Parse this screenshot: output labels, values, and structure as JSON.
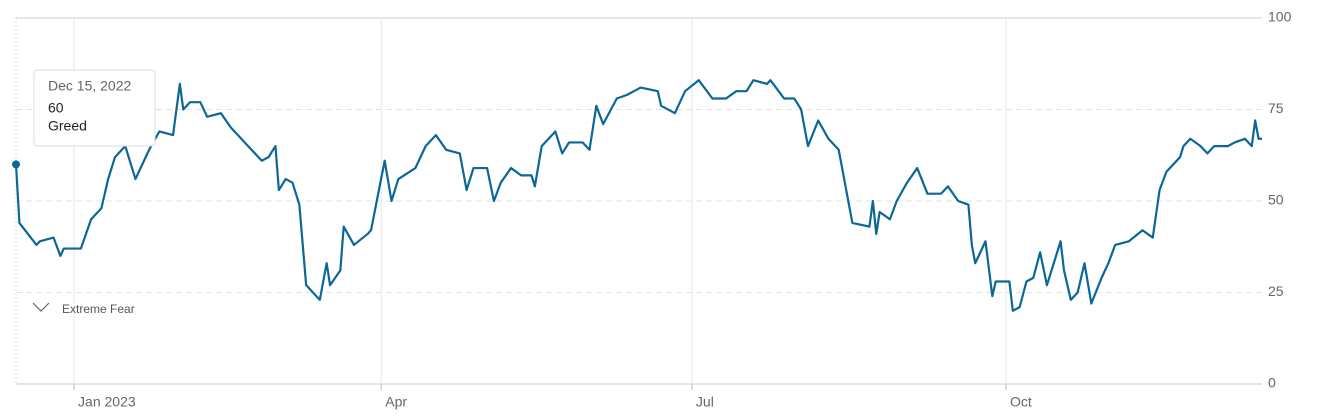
{
  "chart_data": {
    "type": "line",
    "color": "#0b6796",
    "x": [
      "2022-12-15",
      "2022-12-16",
      "2022-12-21",
      "2022-12-22",
      "2022-12-26",
      "2022-12-28",
      "2022-12-29",
      "2023-01-03",
      "2023-01-06",
      "2023-01-09",
      "2023-01-11",
      "2023-01-13",
      "2023-01-16",
      "2023-01-19",
      "2023-01-23",
      "2023-01-26",
      "2023-01-30",
      "2023-02-01",
      "2023-02-02",
      "2023-02-04",
      "2023-02-07",
      "2023-02-09",
      "2023-02-13",
      "2023-02-16",
      "2023-02-21",
      "2023-02-25",
      "2023-02-27",
      "2023-03-01",
      "2023-03-02",
      "2023-03-04",
      "2023-03-06",
      "2023-03-08",
      "2023-03-10",
      "2023-03-14",
      "2023-03-16",
      "2023-03-17",
      "2023-03-20",
      "2023-03-21",
      "2023-03-24",
      "2023-03-28",
      "2023-03-29",
      "2023-04-02",
      "2023-04-04",
      "2023-04-06",
      "2023-04-11",
      "2023-04-14",
      "2023-04-17",
      "2023-04-20",
      "2023-04-24",
      "2023-04-26",
      "2023-04-28",
      "2023-05-02",
      "2023-05-04",
      "2023-05-06",
      "2023-05-09",
      "2023-05-12",
      "2023-05-15",
      "2023-05-16",
      "2023-05-18",
      "2023-05-22",
      "2023-05-24",
      "2023-05-26",
      "2023-05-30",
      "2023-06-01",
      "2023-06-03",
      "2023-06-05",
      "2023-06-09",
      "2023-06-12",
      "2023-06-16",
      "2023-06-21",
      "2023-06-22",
      "2023-06-26",
      "2023-06-29",
      "2023-07-03",
      "2023-07-07",
      "2023-07-11",
      "2023-07-14",
      "2023-07-17",
      "2023-07-19",
      "2023-07-23",
      "2023-07-24",
      "2023-07-28",
      "2023-07-31",
      "2023-08-02",
      "2023-08-04",
      "2023-08-07",
      "2023-08-10",
      "2023-08-13",
      "2023-08-15",
      "2023-08-17",
      "2023-08-22",
      "2023-08-23",
      "2023-08-24",
      "2023-08-25",
      "2023-08-28",
      "2023-08-30",
      "2023-09-02",
      "2023-09-05",
      "2023-09-08",
      "2023-09-12",
      "2023-09-14",
      "2023-09-17",
      "2023-09-20",
      "2023-09-21",
      "2023-09-22",
      "2023-09-25",
      "2023-09-27",
      "2023-09-28",
      "2023-10-02",
      "2023-10-03",
      "2023-10-05",
      "2023-10-07",
      "2023-10-09",
      "2023-10-11",
      "2023-10-13",
      "2023-10-17",
      "2023-10-18",
      "2023-10-20",
      "2023-10-22",
      "2023-10-24",
      "2023-10-26",
      "2023-10-29",
      "2023-10-31",
      "2023-11-02",
      "2023-11-06",
      "2023-11-10",
      "2023-11-13",
      "2023-11-15",
      "2023-11-17",
      "2023-11-21",
      "2023-11-22",
      "2023-11-24",
      "2023-11-27",
      "2023-11-29",
      "2023-12-01",
      "2023-12-05",
      "2023-12-07",
      "2023-12-10",
      "2023-12-12",
      "2023-12-13",
      "2023-12-14",
      "2023-12-15"
    ],
    "values": [
      60,
      44,
      38,
      39,
      40,
      35,
      37,
      37,
      45,
      48,
      56,
      62,
      65,
      56,
      64,
      69,
      68,
      82,
      75,
      77,
      77,
      73,
      74,
      70,
      65,
      61,
      62,
      65,
      53,
      56,
      55,
      49,
      27,
      23,
      33,
      27,
      31,
      43,
      38,
      41,
      42,
      61,
      50,
      56,
      59,
      65,
      68,
      64,
      63,
      53,
      59,
      59,
      50,
      55,
      59,
      57,
      57,
      54,
      65,
      69,
      63,
      66,
      66,
      64,
      76,
      71,
      78,
      79,
      81,
      80,
      76,
      74,
      80,
      83,
      78,
      78,
      80,
      80,
      83,
      82,
      83,
      78,
      78,
      75,
      65,
      72,
      67,
      64,
      54,
      44,
      43,
      50,
      41,
      47,
      45,
      50,
      55,
      59,
      52,
      52,
      54,
      50,
      49,
      38,
      33,
      39,
      24,
      28,
      28,
      20,
      21,
      28,
      29,
      36,
      27,
      39,
      31,
      23,
      25,
      33,
      22,
      29,
      33,
      38,
      39,
      42,
      40,
      53,
      58,
      62,
      65,
      67,
      65,
      63,
      65,
      65,
      66,
      67,
      65,
      72,
      67,
      67
    ],
    "xlim": [
      "2022-12-15",
      "2023-12-15"
    ],
    "xticks": [
      {
        "value": "2023-01-01",
        "label": "Jan 2023"
      },
      {
        "value": "2023-04-01",
        "label": "Apr"
      },
      {
        "value": "2023-07-01",
        "label": "Jul"
      },
      {
        "value": "2023-10-01",
        "label": "Oct"
      }
    ],
    "ylim": [
      0,
      100
    ],
    "yticks": [
      0,
      25,
      50,
      75,
      100
    ],
    "grid": true,
    "tooltip": {
      "date": "Dec 15, 2022",
      "value": 60,
      "label": "Greed"
    },
    "annotations": [
      "Extreme Fear"
    ]
  }
}
